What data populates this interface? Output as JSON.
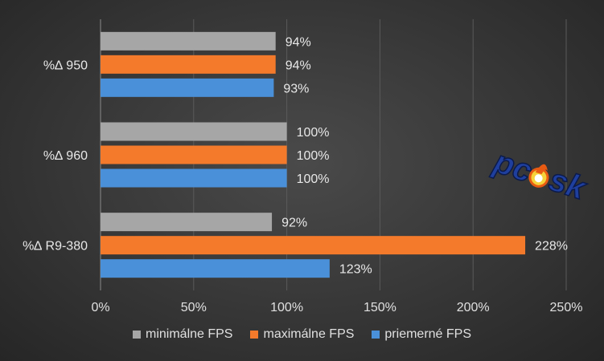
{
  "chart_data": {
    "type": "bar",
    "orientation": "horizontal",
    "categories": [
      "%∆ 950",
      "%∆ 960",
      "%∆ R9-380"
    ],
    "series": [
      {
        "name": "minimálne FPS",
        "color": "#a6a6a6",
        "values": [
          94,
          100,
          92
        ],
        "labels": [
          "94%",
          "100%",
          "92%"
        ]
      },
      {
        "name": "maximálne FPS",
        "color": "#f47a2b",
        "values": [
          94,
          100,
          228
        ],
        "labels": [
          "94%",
          "100%",
          "228%"
        ]
      },
      {
        "name": "priemerné FPS",
        "color": "#4a90d9",
        "values": [
          93,
          100,
          123
        ],
        "labels": [
          "93%",
          "100%",
          "123%"
        ]
      }
    ],
    "xlim": [
      0,
      250
    ],
    "xticks": [
      0,
      50,
      100,
      150,
      200,
      250
    ],
    "xtick_labels": [
      "0%",
      "50%",
      "100%",
      "150%",
      "200%",
      "250%"
    ],
    "grid": true,
    "legend_position": "bottom"
  },
  "logo": {
    "text": "pc",
    "text2": "sk",
    "icon": "flame-icon"
  }
}
